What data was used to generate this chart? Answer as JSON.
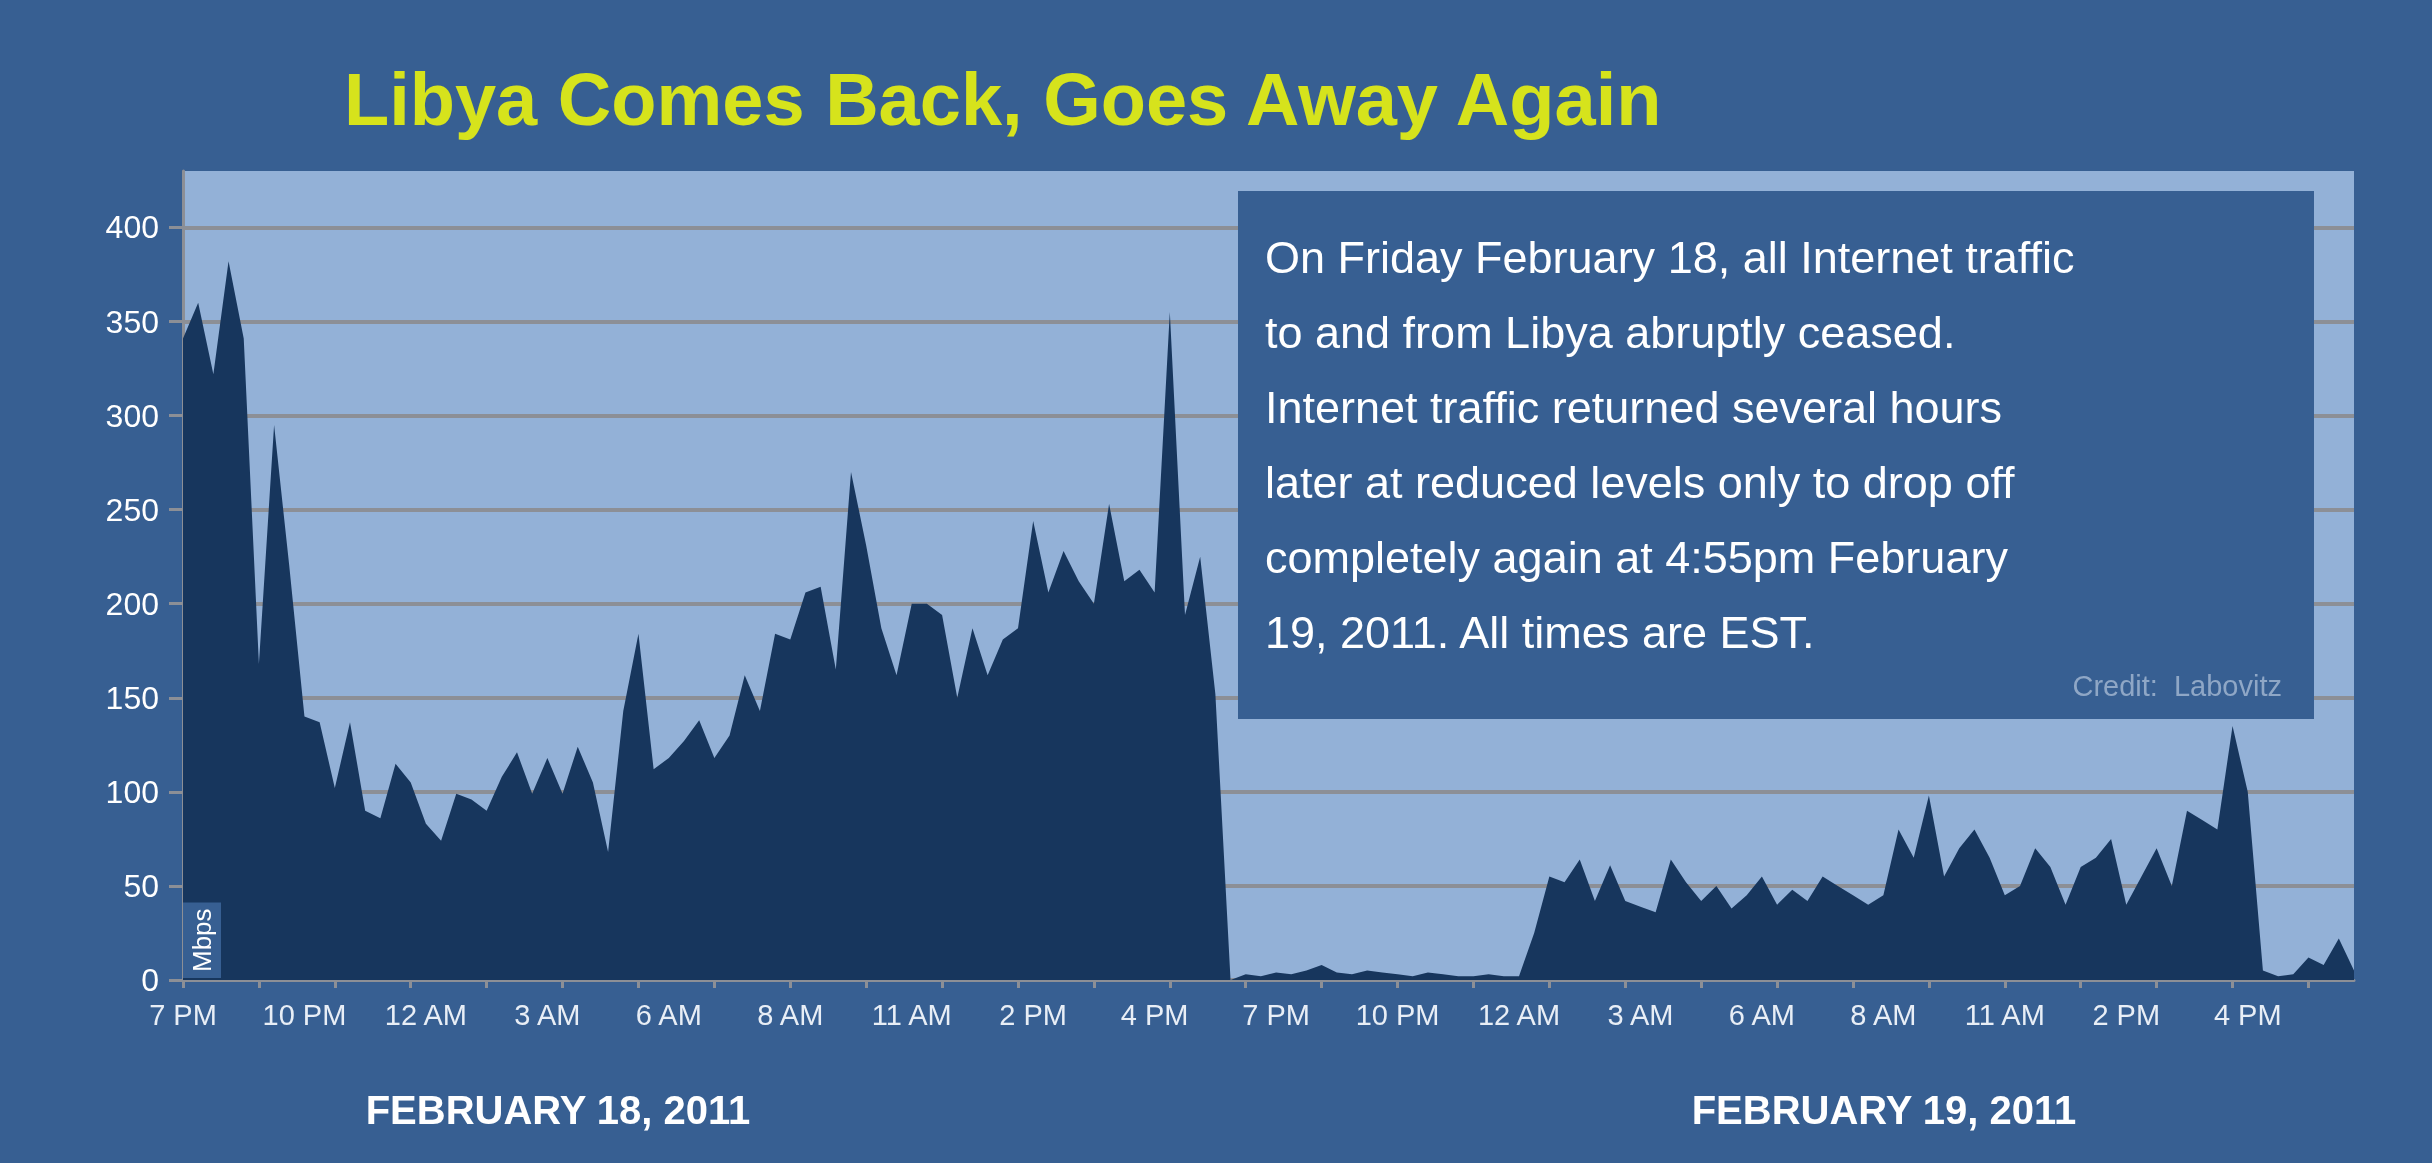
{
  "chart_data": {
    "type": "area",
    "title": "Libya Comes Back, Goes Away Again",
    "ylabel": "Mbps",
    "categories": [
      "7 PM",
      null,
      null,
      null,
      null,
      null,
      null,
      null,
      "10 PM",
      null,
      null,
      null,
      null,
      null,
      null,
      null,
      "12 AM",
      null,
      null,
      null,
      null,
      null,
      null,
      null,
      "3 AM",
      null,
      null,
      null,
      null,
      null,
      null,
      null,
      "6 AM",
      null,
      null,
      null,
      null,
      null,
      null,
      null,
      "8 AM",
      null,
      null,
      null,
      null,
      null,
      null,
      null,
      "11 AM",
      null,
      null,
      null,
      null,
      null,
      null,
      null,
      "2 PM",
      null,
      null,
      null,
      null,
      null,
      null,
      null,
      "4 PM",
      null,
      null,
      null,
      null,
      null,
      null,
      null,
      "7 PM",
      null,
      null,
      null,
      null,
      null,
      null,
      null,
      "10 PM",
      null,
      null,
      null,
      null,
      null,
      null,
      null,
      "12 AM",
      null,
      null,
      null,
      null,
      null,
      null,
      null,
      "3 AM",
      null,
      null,
      null,
      null,
      null,
      null,
      null,
      "6 AM",
      null,
      null,
      null,
      null,
      null,
      null,
      null,
      "8 AM",
      null,
      null,
      null,
      null,
      null,
      null,
      null,
      "11 AM",
      null,
      null,
      null,
      null,
      null,
      null,
      null,
      "2 PM",
      null,
      null,
      null,
      null,
      null,
      null,
      null,
      "4 PM",
      null,
      null,
      null,
      null,
      null,
      null,
      null
    ],
    "values": [
      341,
      360,
      322,
      382,
      341,
      168,
      295,
      220,
      140,
      137,
      102,
      137,
      90,
      86,
      115,
      105,
      83,
      74,
      99,
      96,
      90,
      108,
      121,
      99,
      118,
      99,
      124,
      105,
      68,
      143,
      184,
      112,
      118,
      127,
      138,
      118,
      130,
      162,
      143,
      184,
      181,
      206,
      209,
      165,
      270,
      231,
      187,
      162,
      200,
      200,
      194,
      150,
      187,
      162,
      181,
      187,
      244,
      206,
      228,
      212,
      200,
      253,
      212,
      218,
      206,
      355,
      194,
      225,
      152,
      0,
      3,
      2,
      4,
      3,
      5,
      8,
      4,
      3,
      5,
      4,
      3,
      2,
      4,
      3,
      2,
      2,
      3,
      2,
      2,
      25,
      55,
      52,
      64,
      42,
      61,
      42,
      39,
      36,
      64,
      52,
      42,
      50,
      38,
      45,
      55,
      40,
      48,
      42,
      55,
      50,
      45,
      40,
      45,
      80,
      65,
      98,
      55,
      70,
      80,
      65,
      45,
      50,
      70,
      60,
      40,
      60,
      65,
      75,
      40,
      55,
      70,
      50,
      90,
      85,
      80,
      135,
      100,
      5,
      2,
      3,
      12,
      8,
      22,
      5
    ],
    "color": "#17365d",
    "ylim": [
      0,
      430
    ],
    "yticks": [
      0,
      50,
      100,
      150,
      200,
      250,
      300,
      350,
      400
    ],
    "grid": "y",
    "annotations": [
      "On Friday February 18, all Internet traffic\nto and from Libya abruptly ceased.\nInternet traffic returned several hours\nlater at reduced levels only to drop off\ncompletely again at 4:55pm February\n19, 2011. All times are EST.",
      "Credit:  Labovitz",
      "FEBRUARY 18, 2011",
      "FEBRUARY 19, 2011"
    ]
  }
}
